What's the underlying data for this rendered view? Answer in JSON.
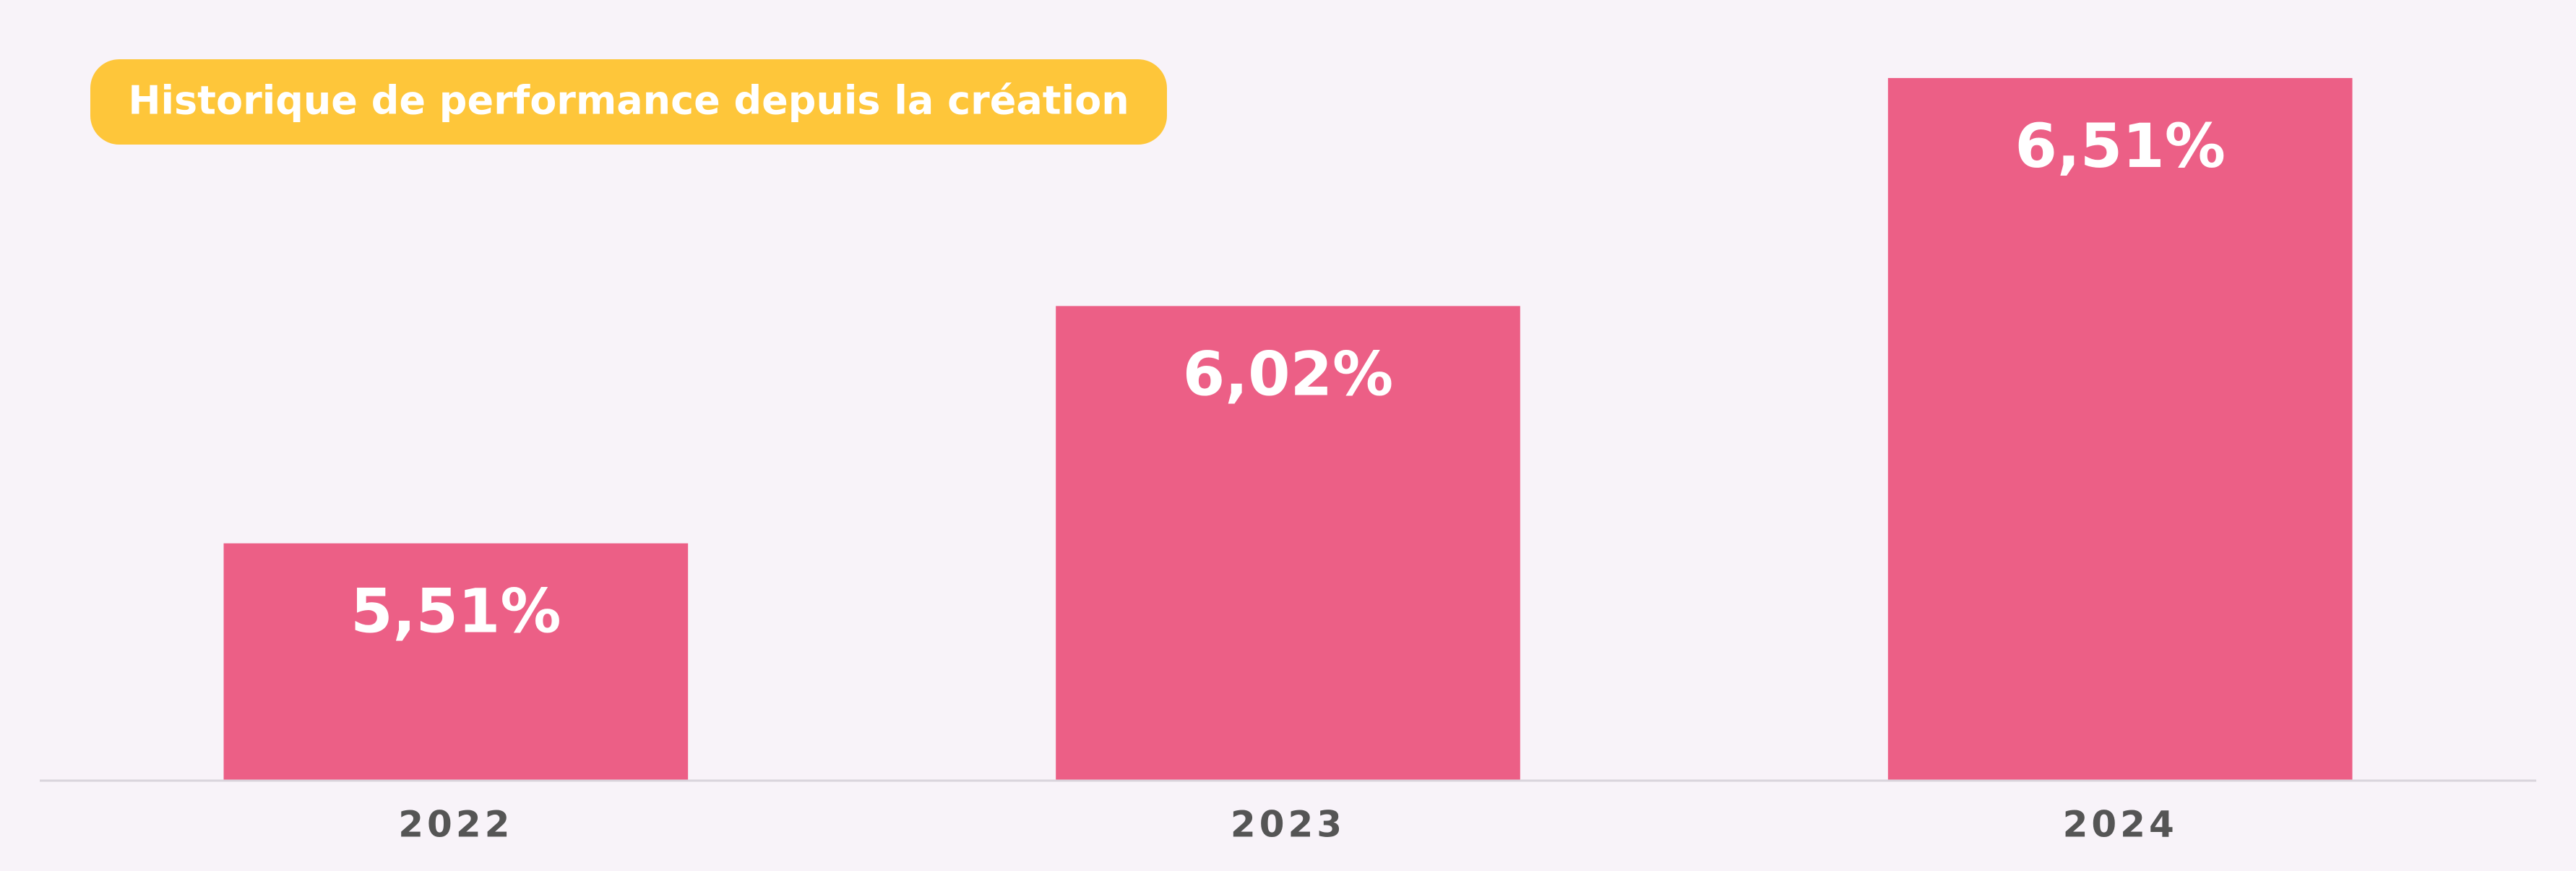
{
  "chart_data": {
    "type": "bar",
    "title": "Historique de performance depuis la création",
    "categories": [
      "2022",
      "2023",
      "2024"
    ],
    "values": [
      5.51,
      6.02,
      6.51
    ],
    "value_labels": [
      "5,51%",
      "6,02%",
      "6,51%"
    ],
    "color": "#ec5f86",
    "ylim": [
      5,
      6.6
    ]
  }
}
